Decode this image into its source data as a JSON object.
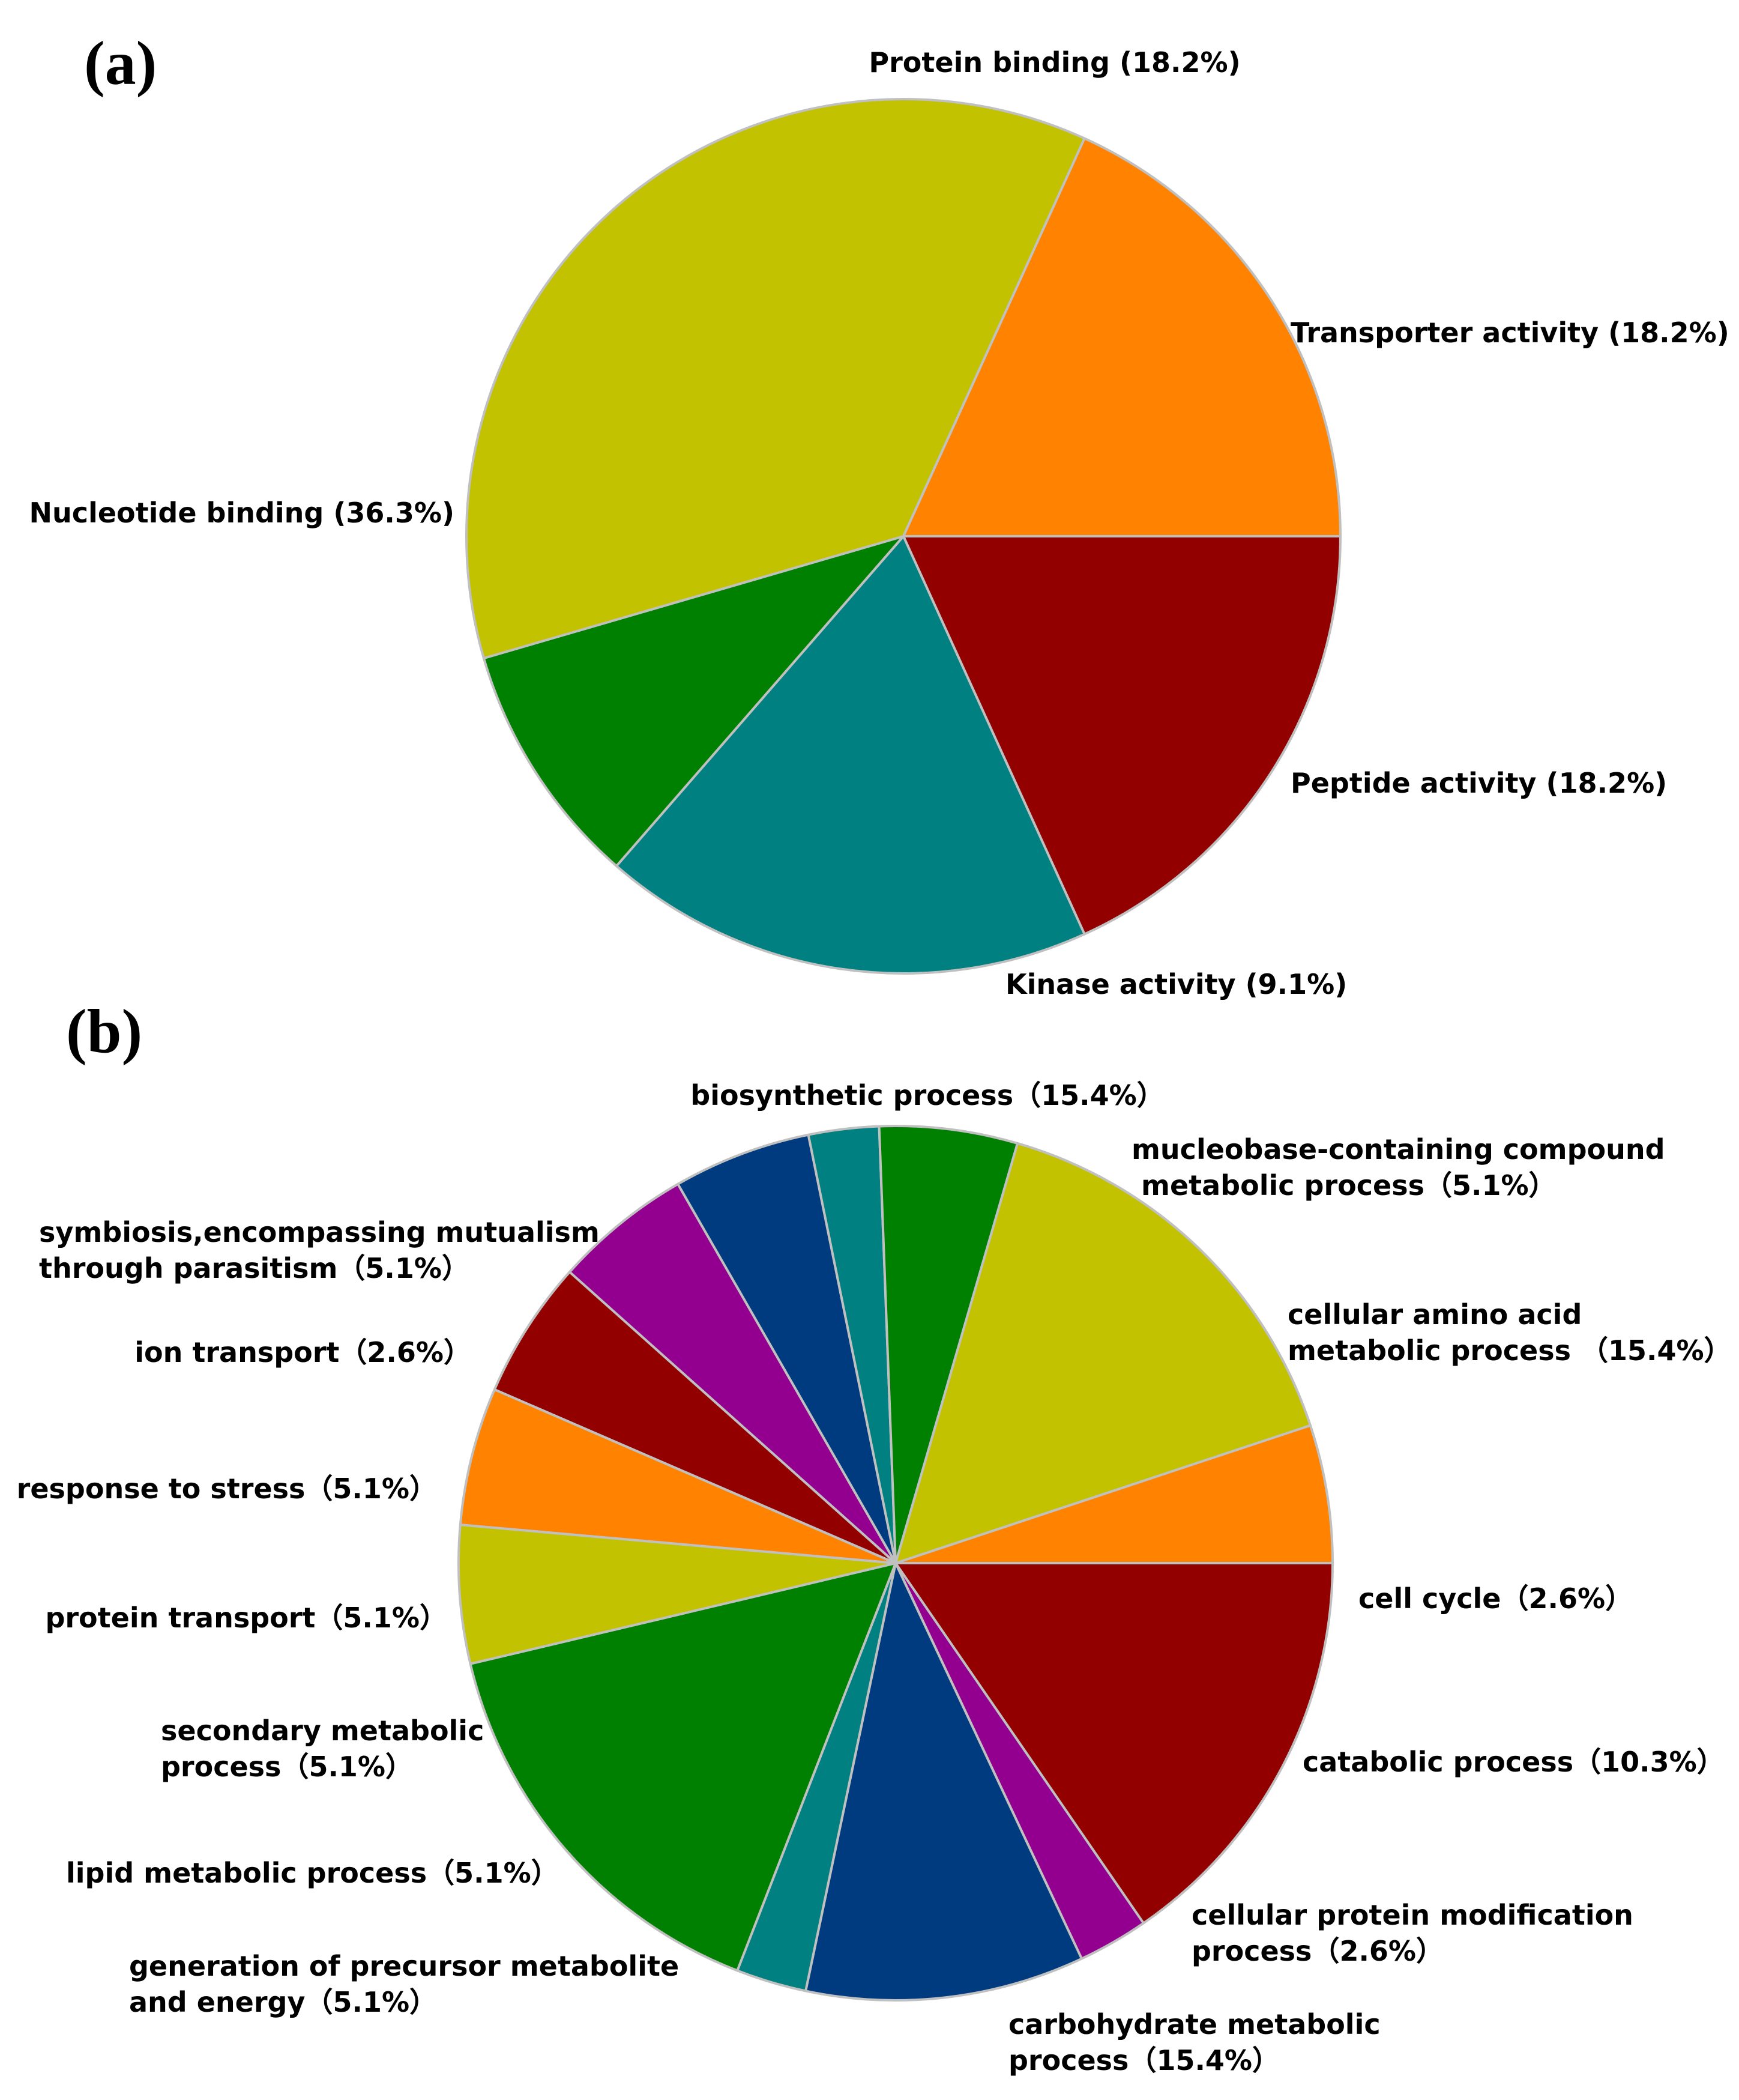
{
  "chart_data": [
    {
      "panel": "(a)",
      "type": "pie",
      "title": "",
      "slices": [
        {
          "label": "Transporter activity (18.2%)",
          "value": 18.2,
          "color": "#930000"
        },
        {
          "label": "Peptide activity (18.2%)",
          "value": 18.2,
          "color": "#008080"
        },
        {
          "label": "Kinase activity (9.1%)",
          "value": 9.1,
          "color": "#008000"
        },
        {
          "label": "Nucleotide binding (36.3%)",
          "value": 36.3,
          "color": "#C2C200"
        },
        {
          "label": "Protein binding (18.2%)",
          "value": 18.2,
          "color": "#FF8200"
        }
      ]
    },
    {
      "panel": "(b)",
      "type": "pie",
      "title": "",
      "slices": [
        {
          "label": [
            "cellular amino acid",
            "metabolic process （15.4%）"
          ],
          "value": 15.4,
          "color": "#930000"
        },
        {
          "label": [
            "cell cycle（2.6%）"
          ],
          "value": 2.6,
          "color": "#930090"
        },
        {
          "label": [
            "catabolic process（10.3%）"
          ],
          "value": 10.3,
          "color": "#003B80"
        },
        {
          "label": [
            "cellular protein modification",
            "process（2.6%）"
          ],
          "value": 2.6,
          "color": "#008080"
        },
        {
          "label": [
            "carbohydrate metabolic",
            "process（15.4%）"
          ],
          "value": 15.4,
          "color": "#008000"
        },
        {
          "label": [
            "generation of precursor metabolite",
            "and energy（5.1%）"
          ],
          "value": 5.1,
          "color": "#C2C200"
        },
        {
          "label": [
            "lipid metabolic process（5.1%）"
          ],
          "value": 5.1,
          "color": "#FF8200"
        },
        {
          "label": [
            "secondary metabolic",
            "process（5.1%）"
          ],
          "value": 5.1,
          "color": "#930000"
        },
        {
          "label": [
            "protein transport（5.1%）"
          ],
          "value": 5.1,
          "color": "#930090"
        },
        {
          "label": [
            "response to stress（5.1%）"
          ],
          "value": 5.1,
          "color": "#003B80"
        },
        {
          "label": [
            "ion transport（2.6%）"
          ],
          "value": 2.6,
          "color": "#008080"
        },
        {
          "label": [
            "symbiosis,encompassing mutualism",
            "through parasitism（5.1%）"
          ],
          "value": 5.1,
          "color": "#008000"
        },
        {
          "label": [
            "biosynthetic process（15.4%）"
          ],
          "value": 15.4,
          "color": "#C2C200"
        },
        {
          "label": [
            "mucleobase-containing compound",
            " metabolic process（5.1%）"
          ],
          "value": 5.1,
          "color": "#FF8200"
        }
      ]
    }
  ]
}
